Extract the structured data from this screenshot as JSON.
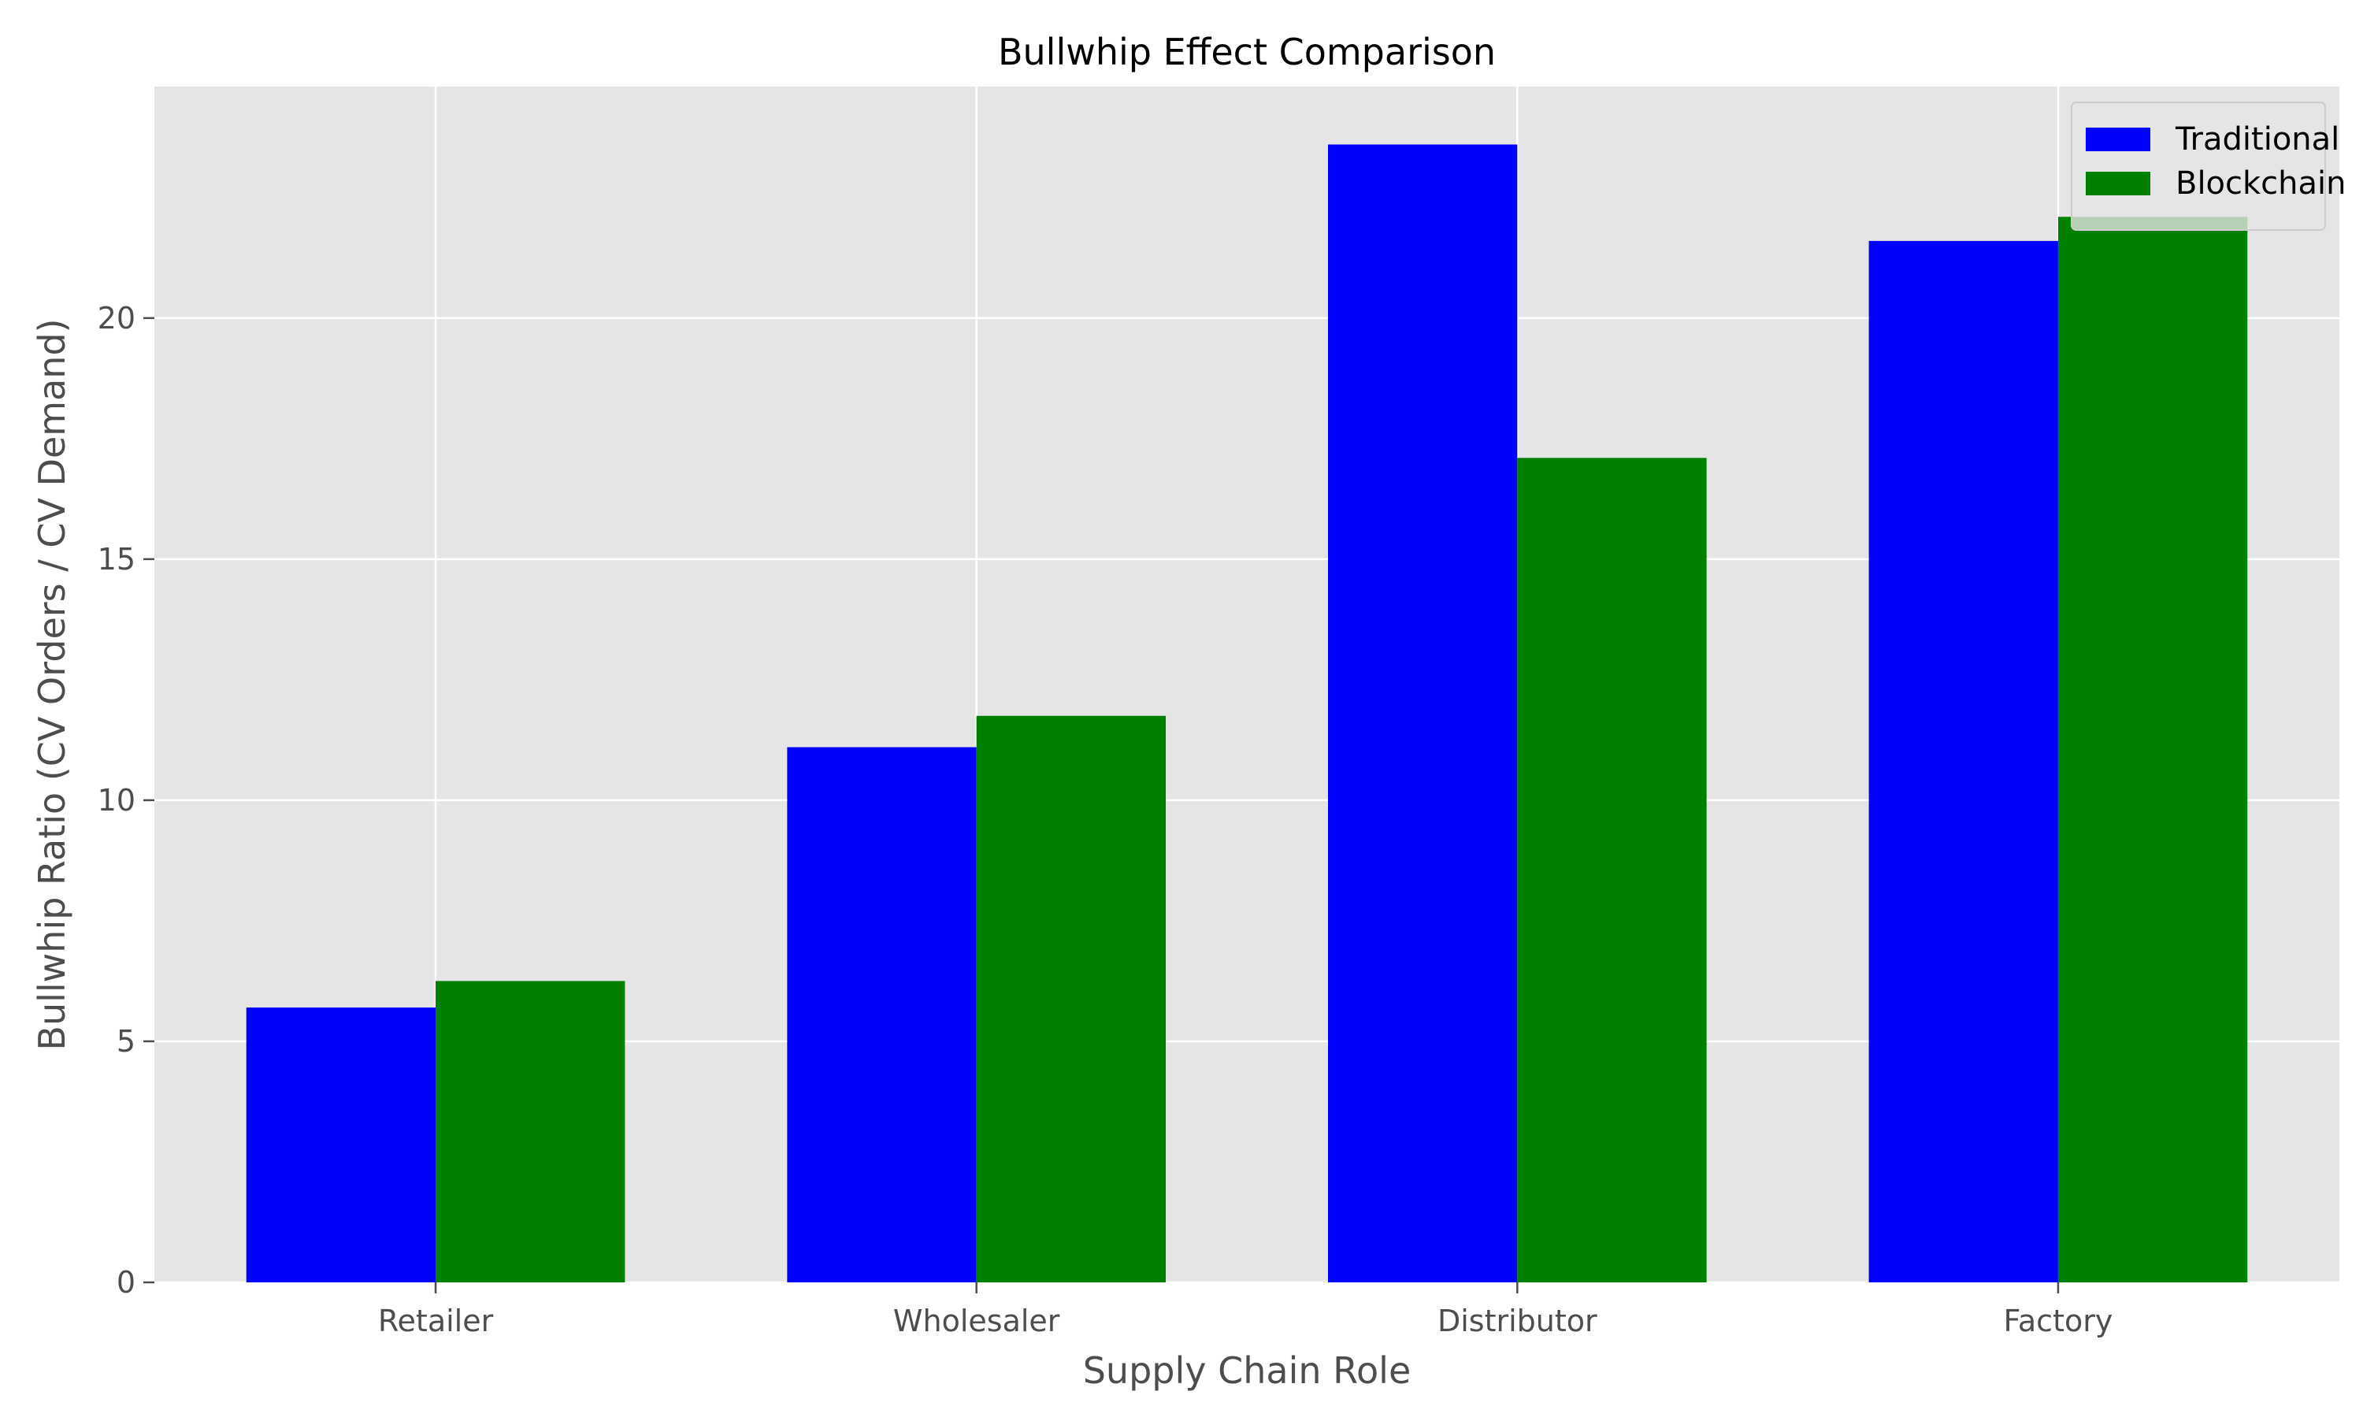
{
  "chart_data": {
    "type": "bar",
    "title": "Bullwhip Effect Comparison",
    "xlabel": "Supply Chain Role",
    "ylabel": "Bullwhip Ratio (CV Orders / CV Demand)",
    "categories": [
      "Retailer",
      "Wholesaler",
      "Distributor",
      "Factory"
    ],
    "series": [
      {
        "name": "Traditional",
        "color": "#0000ff",
        "values": [
          5.7,
          11.1,
          23.6,
          21.6
        ]
      },
      {
        "name": "Blockchain",
        "color": "#008000",
        "values": [
          6.25,
          11.75,
          17.1,
          22.1
        ]
      }
    ],
    "ylim": [
      0,
      24.8
    ],
    "yticks": [
      0,
      5,
      10,
      15,
      20
    ],
    "grid": true,
    "legend_position": "top-right",
    "style": {
      "plot_background": "#e5e5e5",
      "grid_color": "#ffffff"
    }
  }
}
